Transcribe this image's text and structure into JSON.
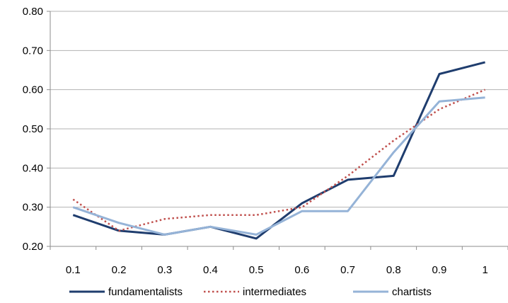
{
  "chart_data": {
    "type": "line",
    "x": [
      "0.1",
      "0.2",
      "0.3",
      "0.4",
      "0.5",
      "0.6",
      "0.7",
      "0.8",
      "0.9",
      "1"
    ],
    "ylim": [
      0.2,
      0.8
    ],
    "yticks": [
      "0.20",
      "0.30",
      "0.40",
      "0.50",
      "0.60",
      "0.70",
      "0.80"
    ],
    "grid": true,
    "legend_position": "bottom",
    "series": [
      {
        "name": "fundamentalists",
        "color": "#1f3d6e",
        "style": "solid",
        "values": [
          0.28,
          0.24,
          0.23,
          0.25,
          0.22,
          0.31,
          0.37,
          0.38,
          0.64,
          0.67
        ]
      },
      {
        "name": "intermediates",
        "color": "#c0504d",
        "style": "dotted",
        "values": [
          0.32,
          0.24,
          0.27,
          0.28,
          0.28,
          0.3,
          0.38,
          0.47,
          0.55,
          0.6
        ]
      },
      {
        "name": "chartists",
        "color": "#95b3d7",
        "style": "solid",
        "values": [
          0.3,
          0.26,
          0.23,
          0.25,
          0.23,
          0.29,
          0.29,
          0.44,
          0.57,
          0.58
        ]
      }
    ]
  }
}
